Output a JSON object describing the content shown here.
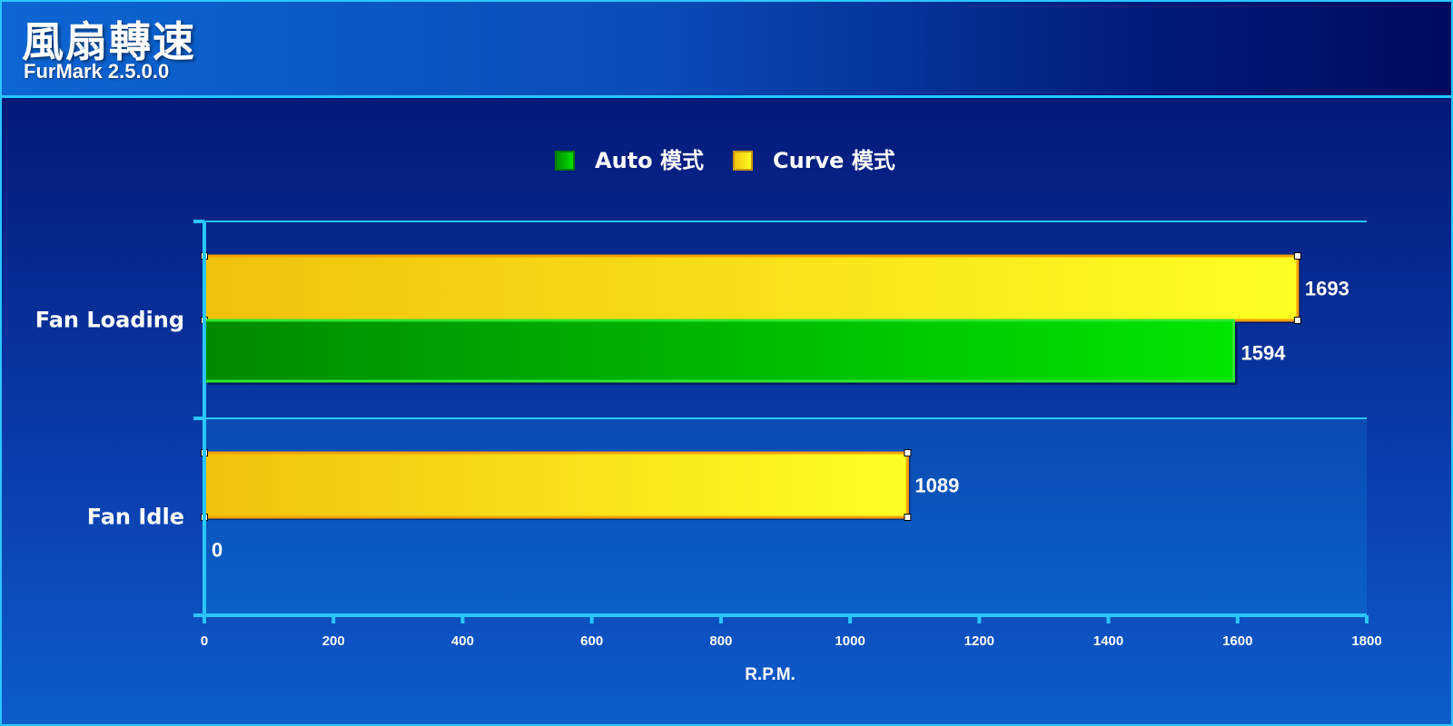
{
  "header": {
    "title": "風扇轉速",
    "subtitle": "FurMark 2.5.0.0"
  },
  "colors": {
    "auto": "#00c400",
    "curve": "#ffe600",
    "accent": "#29c6ff"
  },
  "chart_data": {
    "type": "bar",
    "orientation": "horizontal",
    "title": "風扇轉速",
    "subtitle": "FurMark 2.5.0.0",
    "xlabel": "R.P.M.",
    "ylabel": "",
    "xlim": [
      0,
      1800
    ],
    "x_ticks": [
      0,
      200,
      400,
      600,
      800,
      1000,
      1200,
      1400,
      1600,
      1800
    ],
    "categories": [
      "Fan Loading",
      "Fan Idle"
    ],
    "series": [
      {
        "name": "Auto 模式",
        "values": [
          1594,
          0
        ]
      },
      {
        "name": "Curve 模式",
        "values": [
          1693,
          1089
        ]
      }
    ],
    "legend_position": "top-center",
    "grid": true
  }
}
